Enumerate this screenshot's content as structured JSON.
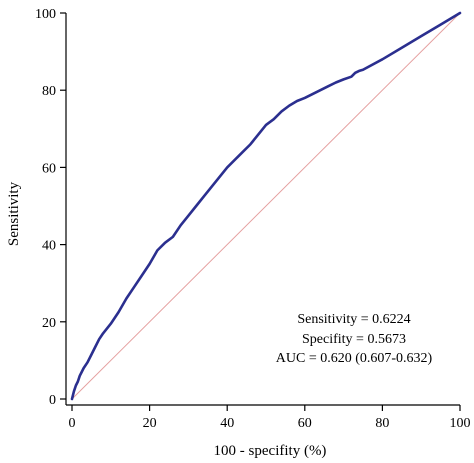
{
  "chart_data": {
    "type": "line",
    "title": "",
    "xlabel": "100 - specifity (%)",
    "ylabel": "Sensitivity",
    "xlim": [
      0,
      100
    ],
    "ylim": [
      0,
      100
    ],
    "xticks": [
      "0",
      "20",
      "40",
      "60",
      "80",
      "100"
    ],
    "yticks": [
      "0",
      "20",
      "40",
      "60",
      "80",
      "100"
    ],
    "grid": false,
    "legend": "none",
    "series": [
      {
        "color": "#2b2f8f",
        "x": [
          0,
          0.5,
          1,
          1.5,
          2,
          2.5,
          3,
          4,
          5,
          6,
          7,
          8,
          10,
          12,
          14,
          16,
          18,
          20,
          22,
          24,
          26,
          28,
          30,
          32,
          34,
          36,
          38,
          40,
          42,
          44,
          46,
          48,
          50,
          52,
          54,
          56,
          58,
          60,
          62,
          64,
          66,
          68,
          70,
          72,
          73,
          74,
          75,
          80,
          85,
          90,
          95,
          100
        ],
        "y": [
          0,
          2,
          3.5,
          4.5,
          6,
          7,
          8,
          9.5,
          11.5,
          13.5,
          15.5,
          17,
          19.5,
          22.5,
          26,
          29,
          32,
          35,
          38.5,
          40.5,
          42,
          45,
          47.5,
          50,
          52.5,
          55,
          57.5,
          60,
          62,
          64,
          66,
          68.5,
          71,
          72.5,
          74.5,
          76,
          77.2,
          78,
          79,
          80,
          81,
          82,
          82.8,
          83.5,
          84.5,
          85,
          85.3,
          88,
          91,
          94,
          97,
          100
        ]
      },
      {
        "color": "#e5a0a0",
        "x": [
          0,
          100
        ],
        "y": [
          0,
          100
        ]
      }
    ],
    "annotations": [
      "Sensitivity = 0.6224",
      "Specifity = 0.5673",
      "AUC = 0.620 (0.607-0.632)"
    ]
  }
}
